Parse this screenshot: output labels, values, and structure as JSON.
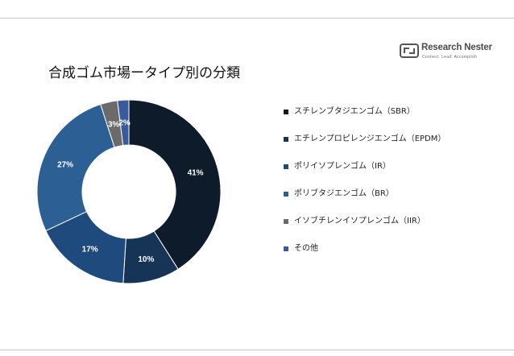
{
  "brand": {
    "name": "Research Nester",
    "tagline": "Connect. Lead. Accomplish"
  },
  "chart_data": {
    "type": "pie",
    "title": "合成ゴム市場ータイプ別の分類",
    "donut": true,
    "legend_position": "right",
    "categories": [
      "スチレンブタジエンゴム（SBR）",
      "エチレンプロピレンジエンゴム（EPDM）",
      "ポリイソプレンゴム（IR）",
      "ポリブタジエンゴム（BR）",
      "イソブチレンイソプレンゴム（IIR）",
      "その他"
    ],
    "values": [
      41,
      10,
      17,
      27,
      3,
      2
    ],
    "data_labels": [
      "41%",
      "10%",
      "17%",
      "27%",
      "3%",
      "2%"
    ],
    "colors": [
      "#0d1b2a",
      "#163556",
      "#1f4a7d",
      "#2c5f94",
      "#6b6b6b",
      "#3a5a9e"
    ],
    "label_colors": [
      "#ffffff",
      "#ffffff",
      "#ffffff",
      "#ffffff",
      "#ffffff",
      "#ffffff"
    ]
  }
}
